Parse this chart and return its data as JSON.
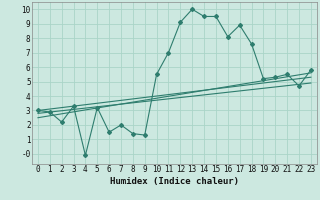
{
  "title": "",
  "xlabel": "Humidex (Indice chaleur)",
  "ylabel": "",
  "background_color": "#cce8e0",
  "line_color": "#2e7d6e",
  "grid_color": "#aad4c8",
  "xlim": [
    -0.5,
    23.5
  ],
  "ylim": [
    -0.7,
    10.5
  ],
  "xticks": [
    0,
    1,
    2,
    3,
    4,
    5,
    6,
    7,
    8,
    9,
    10,
    11,
    12,
    13,
    14,
    15,
    16,
    17,
    18,
    19,
    20,
    21,
    22,
    23
  ],
  "yticks": [
    0,
    1,
    2,
    3,
    4,
    5,
    6,
    7,
    8,
    9,
    10
  ],
  "ytick_labels": [
    "-0",
    "1",
    "2",
    "3",
    "4",
    "5",
    "6",
    "7",
    "8",
    "9",
    "10"
  ],
  "curve1_x": [
    0,
    1,
    2,
    3,
    4,
    5,
    6,
    7,
    8,
    9,
    10,
    11,
    12,
    13,
    14,
    15,
    16,
    17,
    18,
    19,
    20,
    21,
    22,
    23
  ],
  "curve1_y": [
    3.0,
    2.9,
    2.2,
    3.3,
    -0.1,
    3.2,
    1.5,
    2.0,
    1.4,
    1.3,
    5.5,
    7.0,
    9.1,
    10.0,
    9.5,
    9.5,
    8.1,
    8.9,
    7.6,
    5.2,
    5.3,
    5.5,
    4.7,
    5.8
  ],
  "curve2_x": [
    0,
    23
  ],
  "curve2_y": [
    3.0,
    5.3
  ],
  "curve3_x": [
    0,
    23
  ],
  "curve3_y": [
    2.8,
    4.9
  ],
  "curve4_x": [
    0,
    23
  ],
  "curve4_y": [
    2.5,
    5.6
  ]
}
